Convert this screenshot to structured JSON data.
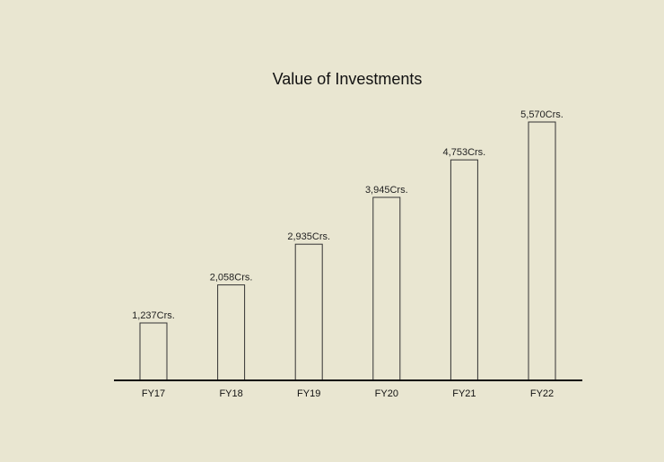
{
  "chart_data": {
    "type": "bar",
    "title": "Value of Investments",
    "xlabel": "",
    "ylabel": "",
    "categories": [
      "FY17",
      "FY18",
      "FY19",
      "FY20",
      "FY21",
      "FY22"
    ],
    "values": [
      1237,
      2058,
      2935,
      3945,
      4753,
      5570
    ],
    "data_labels": [
      "1,237Crs.",
      "2,058Crs.",
      "2,935Crs.",
      "3,945Crs.",
      "4,753Crs.",
      "5,570Crs."
    ],
    "ylim": [
      0,
      5570
    ],
    "grid": false,
    "legend": "none",
    "y_axis_shown": false
  },
  "colors": {
    "background": "#e9e6d1",
    "bar_fill": "#e9e6d1",
    "bar_outline": "#333333",
    "axis_line": "#111111"
  }
}
